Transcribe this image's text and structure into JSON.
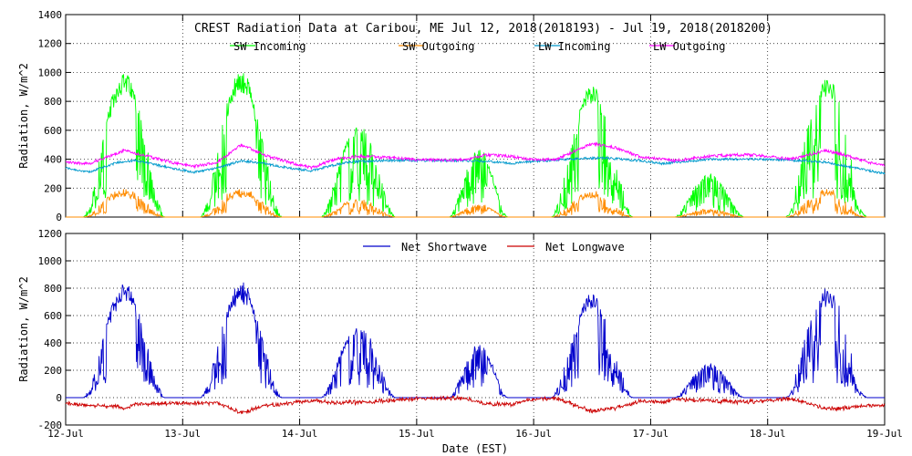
{
  "chart_data": [
    {
      "type": "line",
      "title": "CREST Radiation Data at Caribou, ME   Jul 12, 2018(2018193) - Jul 19, 2018(2018200)",
      "xlabel": "",
      "ylabel": "Radiation, W/m^2",
      "x_ticks": [
        "12-Jul",
        "13-Jul",
        "14-Jul",
        "15-Jul",
        "16-Jul",
        "17-Jul",
        "18-Jul",
        "19-Jul"
      ],
      "ylim": [
        0,
        1400
      ],
      "y_ticks": [
        0,
        200,
        400,
        600,
        800,
        1000,
        1200,
        1400
      ],
      "grid": true,
      "legend_position": "top",
      "series": [
        {
          "name": "SW Incoming",
          "color": "#00ff00",
          "days": [
            {
              "start": 0.15,
              "end": 0.85,
              "noon": 0.5,
              "peak": 1000,
              "clear": [
                0.35,
                0.6
              ],
              "cloud": 0.7
            },
            {
              "start": 0.15,
              "end": 0.85,
              "noon": 0.5,
              "peak": 1010,
              "clear": [
                0.38,
                0.62
              ],
              "cloud": 0.6
            },
            {
              "start": 0.18,
              "end": 0.82,
              "noon": 0.5,
              "peak": 640,
              "clear": [
                0.35,
                0.42
              ],
              "cloud": 0.55
            },
            {
              "start": 0.28,
              "end": 0.78,
              "noon": 0.55,
              "peak": 480,
              "clear": [
                0.6,
                0.7
              ],
              "cloud": 0.45
            },
            {
              "start": 0.15,
              "end": 0.85,
              "noon": 0.5,
              "peak": 910,
              "clear": [
                0.38,
                0.55
              ],
              "cloud": 0.75
            },
            {
              "start": 0.2,
              "end": 0.8,
              "noon": 0.5,
              "peak": 300,
              "clear": [
                0,
                0
              ],
              "cloud": 0.5
            },
            {
              "start": 0.15,
              "end": 0.85,
              "noon": 0.5,
              "peak": 980,
              "clear": [
                0.45,
                0.58
              ],
              "cloud": 0.8
            }
          ]
        },
        {
          "name": "SW Outgoing",
          "color": "#ff8c00",
          "albedo": 0.18
        },
        {
          "name": "LW Incoming",
          "color": "#0099cc",
          "points": [
            [
              0,
              340
            ],
            [
              0.2,
              310
            ],
            [
              0.45,
              380
            ],
            [
              0.6,
              390
            ],
            [
              0.9,
              340
            ],
            [
              1.1,
              310
            ],
            [
              1.3,
              340
            ],
            [
              1.5,
              390
            ],
            [
              1.7,
              370
            ],
            [
              1.9,
              340
            ],
            [
              2.1,
              320
            ],
            [
              2.4,
              380
            ],
            [
              2.7,
              390
            ],
            [
              3,
              390
            ],
            [
              3.5,
              390
            ],
            [
              3.7,
              380
            ],
            [
              3.8,
              370
            ],
            [
              4,
              385
            ],
            [
              4.3,
              400
            ],
            [
              4.6,
              410
            ],
            [
              4.9,
              390
            ],
            [
              5.1,
              370
            ],
            [
              5.5,
              400
            ],
            [
              6,
              400
            ],
            [
              6.3,
              390
            ],
            [
              6.5,
              380
            ],
            [
              6.8,
              330
            ],
            [
              7,
              300
            ]
          ]
        },
        {
          "name": "LW Outgoing",
          "color": "#ff00ff",
          "points": [
            [
              0,
              380
            ],
            [
              0.2,
              370
            ],
            [
              0.5,
              460
            ],
            [
              0.7,
              420
            ],
            [
              0.9,
              380
            ],
            [
              1.1,
              350
            ],
            [
              1.3,
              380
            ],
            [
              1.5,
              500
            ],
            [
              1.7,
              430
            ],
            [
              1.9,
              380
            ],
            [
              2.1,
              340
            ],
            [
              2.3,
              400
            ],
            [
              2.5,
              420
            ],
            [
              2.8,
              410
            ],
            [
              3,
              395
            ],
            [
              3.4,
              395
            ],
            [
              3.6,
              430
            ],
            [
              3.8,
              420
            ],
            [
              4,
              395
            ],
            [
              4.2,
              400
            ],
            [
              4.5,
              510
            ],
            [
              4.7,
              480
            ],
            [
              4.9,
              420
            ],
            [
              5.2,
              390
            ],
            [
              5.5,
              420
            ],
            [
              5.7,
              430
            ],
            [
              5.9,
              430
            ],
            [
              6.2,
              400
            ],
            [
              6.5,
              460
            ],
            [
              6.7,
              420
            ],
            [
              6.9,
              370
            ],
            [
              7,
              360
            ]
          ]
        }
      ]
    },
    {
      "type": "line",
      "title": "",
      "xlabel": "Date (EST)",
      "ylabel": "Radiation, W/m^2",
      "x_ticks": [
        "12-Jul",
        "13-Jul",
        "14-Jul",
        "15-Jul",
        "16-Jul",
        "17-Jul",
        "18-Jul",
        "19-Jul"
      ],
      "ylim": [
        -200,
        1200
      ],
      "y_ticks": [
        -200,
        0,
        200,
        400,
        600,
        800,
        1000,
        1200
      ],
      "grid": true,
      "legend_position": "top",
      "series": [
        {
          "name": "Net Shortwave",
          "color": "#0000cc",
          "derivation": "SW Incoming - SW Outgoing"
        },
        {
          "name": "Net Longwave",
          "color": "#cc0000",
          "derivation": "LW Incoming - LW Outgoing"
        }
      ]
    }
  ]
}
